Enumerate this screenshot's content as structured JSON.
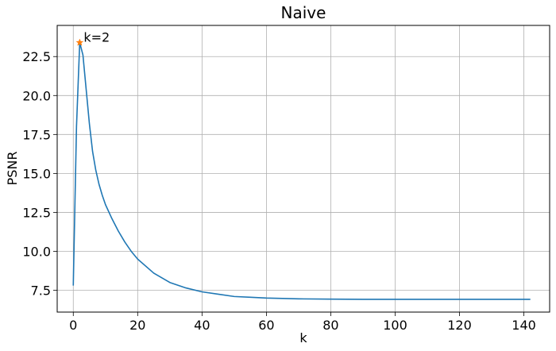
{
  "chart_data": {
    "type": "line",
    "title": "Naive",
    "xlabel": "k",
    "ylabel": "PSNR",
    "xlim": [
      -5,
      148
    ],
    "ylim": [
      6.1,
      24.5
    ],
    "xticks": [
      0,
      20,
      40,
      60,
      80,
      100,
      120,
      140
    ],
    "yticks": [
      7.5,
      10.0,
      12.5,
      15.0,
      17.5,
      20.0,
      22.5
    ],
    "xtick_labels": [
      "0",
      "20",
      "40",
      "60",
      "80",
      "100",
      "120",
      "140"
    ],
    "ytick_labels": [
      "7.5",
      "10.0",
      "12.5",
      "15.0",
      "17.5",
      "20.0",
      "22.5"
    ],
    "grid": true,
    "series": [
      {
        "color": "#1f77b4",
        "x": [
          0,
          1,
          2,
          3,
          4,
          5,
          6,
          7,
          8,
          9,
          10,
          12,
          14,
          16,
          18,
          20,
          25,
          30,
          35,
          40,
          45,
          50,
          55,
          60,
          70,
          80,
          90,
          100,
          110,
          120,
          130,
          142
        ],
        "y": [
          7.8,
          18.0,
          23.4,
          22.6,
          20.4,
          18.2,
          16.4,
          15.2,
          14.3,
          13.6,
          13.0,
          12.1,
          11.3,
          10.6,
          10.0,
          9.5,
          8.6,
          8.0,
          7.65,
          7.4,
          7.25,
          7.1,
          7.05,
          7.0,
          6.95,
          6.93,
          6.92,
          6.92,
          6.92,
          6.92,
          6.92,
          6.92
        ]
      }
    ],
    "marker": {
      "x": 2,
      "y": 23.4,
      "symbol": "star",
      "color": "#ff7f0e"
    },
    "annotation": {
      "text": "k=2",
      "x": 2,
      "y": 23.4
    }
  }
}
